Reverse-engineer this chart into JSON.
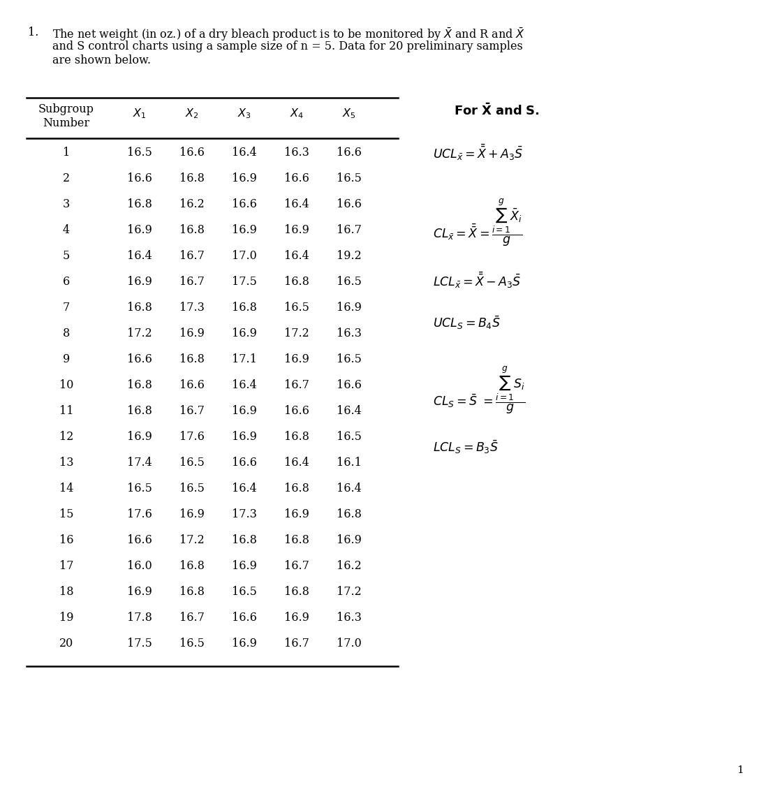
{
  "data": [
    [
      1,
      16.5,
      16.6,
      16.4,
      16.3,
      16.6
    ],
    [
      2,
      16.6,
      16.8,
      16.9,
      16.6,
      16.5
    ],
    [
      3,
      16.8,
      16.2,
      16.6,
      16.4,
      16.6
    ],
    [
      4,
      16.9,
      16.8,
      16.9,
      16.9,
      16.7
    ],
    [
      5,
      16.4,
      16.7,
      17.0,
      16.4,
      19.2
    ],
    [
      6,
      16.9,
      16.7,
      17.5,
      16.8,
      16.5
    ],
    [
      7,
      16.8,
      17.3,
      16.8,
      16.5,
      16.9
    ],
    [
      8,
      17.2,
      16.9,
      16.9,
      17.2,
      16.3
    ],
    [
      9,
      16.6,
      16.8,
      17.1,
      16.9,
      16.5
    ],
    [
      10,
      16.8,
      16.6,
      16.4,
      16.7,
      16.6
    ],
    [
      11,
      16.8,
      16.7,
      16.9,
      16.6,
      16.4
    ],
    [
      12,
      16.9,
      17.6,
      16.9,
      16.8,
      16.5
    ],
    [
      13,
      17.4,
      16.5,
      16.6,
      16.4,
      16.1
    ],
    [
      14,
      16.5,
      16.5,
      16.4,
      16.8,
      16.4
    ],
    [
      15,
      17.6,
      16.9,
      17.3,
      16.9,
      16.8
    ],
    [
      16,
      16.6,
      17.2,
      16.8,
      16.8,
      16.9
    ],
    [
      17,
      16.0,
      16.8,
      16.9,
      16.7,
      16.2
    ],
    [
      18,
      16.9,
      16.8,
      16.5,
      16.8,
      17.2
    ],
    [
      19,
      17.8,
      16.7,
      16.6,
      16.9,
      16.3
    ],
    [
      20,
      17.5,
      16.5,
      16.9,
      16.7,
      17.0
    ]
  ],
  "page_number": "1",
  "bg_color": "#ffffff",
  "text_color": "#000000",
  "title_fs": 11.5,
  "table_fs": 11.5,
  "formula_fs": 12.5,
  "header_fs": 11.5
}
